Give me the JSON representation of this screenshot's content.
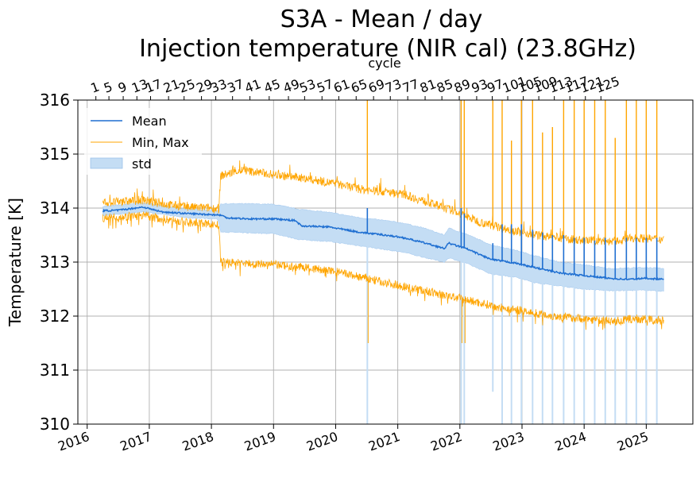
{
  "chart_data": {
    "type": "line",
    "title": "S3A - Mean / day",
    "subtitle": "Injection temperature (NIR cal) (23.8GHz)",
    "ylabel": "Temperature [K]",
    "top_xlabel": "cycle",
    "ylim": [
      310,
      316
    ],
    "yticks": [
      "310",
      "311",
      "312",
      "313",
      "314",
      "315",
      "316"
    ],
    "xlim": [
      2015.85,
      2025.75
    ],
    "xticks": [
      {
        "x": 2016,
        "label": "2016"
      },
      {
        "x": 2017,
        "label": "2017"
      },
      {
        "x": 2018,
        "label": "2018"
      },
      {
        "x": 2019,
        "label": "2019"
      },
      {
        "x": 2020,
        "label": "2020"
      },
      {
        "x": 2021,
        "label": "2021"
      },
      {
        "x": 2022,
        "label": "2022"
      },
      {
        "x": 2023,
        "label": "2023"
      },
      {
        "x": 2024,
        "label": "2024"
      },
      {
        "x": 2025,
        "label": "2025"
      }
    ],
    "cycle_ticks": [
      {
        "x": 2016.14,
        "label": "1"
      },
      {
        "x": 2016.35,
        "label": "5"
      },
      {
        "x": 2016.58,
        "label": "9"
      },
      {
        "x": 2016.8,
        "label": "13"
      },
      {
        "x": 2017.02,
        "label": "17"
      },
      {
        "x": 2017.31,
        "label": "21"
      },
      {
        "x": 2017.56,
        "label": "25"
      },
      {
        "x": 2017.84,
        "label": "29"
      },
      {
        "x": 2018.07,
        "label": "33"
      },
      {
        "x": 2018.34,
        "label": "37"
      },
      {
        "x": 2018.62,
        "label": "41"
      },
      {
        "x": 2018.93,
        "label": "45"
      },
      {
        "x": 2019.24,
        "label": "49"
      },
      {
        "x": 2019.5,
        "label": "53"
      },
      {
        "x": 2019.78,
        "label": "57"
      },
      {
        "x": 2020.05,
        "label": "61"
      },
      {
        "x": 2020.33,
        "label": "65"
      },
      {
        "x": 2020.61,
        "label": "69"
      },
      {
        "x": 2020.88,
        "label": "73"
      },
      {
        "x": 2021.16,
        "label": "77"
      },
      {
        "x": 2021.44,
        "label": "81"
      },
      {
        "x": 2021.71,
        "label": "85"
      },
      {
        "x": 2021.99,
        "label": "89"
      },
      {
        "x": 2022.27,
        "label": "93"
      },
      {
        "x": 2022.52,
        "label": "97"
      },
      {
        "x": 2022.77,
        "label": "101"
      },
      {
        "x": 2023.02,
        "label": "105"
      },
      {
        "x": 2023.27,
        "label": "109"
      },
      {
        "x": 2023.52,
        "label": "113"
      },
      {
        "x": 2023.77,
        "label": "117"
      },
      {
        "x": 2024.02,
        "label": "121"
      },
      {
        "x": 2024.27,
        "label": "125"
      }
    ],
    "legend": [
      "Mean",
      "Min, Max",
      "std"
    ],
    "legend_position": "upper-left",
    "grid": true,
    "series": [
      {
        "name": "Mean",
        "color": "#1f6fd1",
        "x": [
          2016.25,
          2016.5,
          2016.9,
          2017.2,
          2017.6,
          2018.0,
          2018.15,
          2018.25,
          2018.6,
          2019.0,
          2019.35,
          2019.45,
          2019.9,
          2020.4,
          2020.8,
          2021.1,
          2021.45,
          2021.75,
          2021.82,
          2022.1,
          2022.5,
          2022.9,
          2023.2,
          2023.6,
          2024.0,
          2024.4,
          2024.7,
          2025.0,
          2025.28
        ],
        "values": [
          313.95,
          313.96,
          314.02,
          313.93,
          313.9,
          313.88,
          313.87,
          313.82,
          313.8,
          313.8,
          313.77,
          313.67,
          313.65,
          313.55,
          313.5,
          313.45,
          313.35,
          313.25,
          313.35,
          313.25,
          313.05,
          312.98,
          312.9,
          312.8,
          312.75,
          312.7,
          312.68,
          312.7,
          312.68
        ]
      },
      {
        "name": "Max",
        "color": "#ffa500",
        "x": [
          2016.25,
          2016.6,
          2016.9,
          2017.2,
          2017.6,
          2018.0,
          2018.12,
          2018.15,
          2018.5,
          2019.0,
          2019.5,
          2020.0,
          2020.4,
          2020.8,
          2021.1,
          2021.5,
          2021.9,
          2022.3,
          2022.7,
          2023.0,
          2023.5,
          2024.0,
          2024.5,
          2024.8,
          2025.28
        ],
        "values": [
          314.1,
          314.12,
          314.15,
          314.08,
          314.02,
          314.0,
          313.98,
          314.6,
          314.7,
          314.62,
          314.55,
          314.45,
          314.35,
          314.3,
          314.25,
          314.1,
          313.95,
          313.75,
          313.62,
          313.55,
          313.45,
          313.4,
          313.38,
          313.45,
          313.42
        ]
      },
      {
        "name": "Min",
        "color": "#ffa500",
        "x": [
          2016.25,
          2016.6,
          2016.9,
          2017.2,
          2017.6,
          2018.0,
          2018.12,
          2018.15,
          2018.5,
          2019.0,
          2019.5,
          2020.0,
          2020.4,
          2020.8,
          2021.1,
          2021.5,
          2021.9,
          2022.3,
          2022.7,
          2023.0,
          2023.5,
          2024.0,
          2024.5,
          2024.8,
          2025.28
        ],
        "values": [
          313.82,
          313.84,
          313.86,
          313.8,
          313.74,
          313.7,
          313.68,
          313.0,
          312.98,
          312.95,
          312.9,
          312.82,
          312.72,
          312.62,
          312.55,
          312.45,
          312.35,
          312.25,
          312.15,
          312.1,
          312.0,
          311.95,
          311.9,
          311.95,
          311.92
        ]
      },
      {
        "name": "std",
        "color": "#c4ddf4",
        "x": [
          2016.25,
          2016.9,
          2017.6,
          2018.1,
          2018.15,
          2018.6,
          2019.0,
          2019.4,
          2019.9,
          2020.4,
          2020.8,
          2021.1,
          2021.45,
          2021.75,
          2021.82,
          2022.1,
          2022.5,
          2022.9,
          2023.2,
          2023.6,
          2024.0,
          2024.4,
          2025.0,
          2025.28
        ],
        "upper": [
          314.03,
          314.1,
          313.98,
          313.95,
          314.08,
          314.08,
          314.07,
          313.98,
          313.92,
          313.82,
          313.77,
          313.72,
          313.62,
          313.5,
          313.63,
          313.52,
          313.32,
          313.22,
          313.12,
          313.0,
          312.95,
          312.88,
          312.9,
          312.88
        ],
        "lower": [
          313.86,
          313.93,
          313.82,
          313.8,
          313.56,
          313.54,
          313.53,
          313.42,
          313.38,
          313.3,
          313.23,
          313.18,
          313.08,
          313.0,
          313.08,
          312.98,
          312.78,
          312.72,
          312.62,
          312.56,
          312.5,
          312.47,
          312.48,
          312.46
        ]
      }
    ],
    "spikes": [
      {
        "x": 2020.51,
        "max": 316,
        "min": 310,
        "mean": 314.0
      },
      {
        "x": 2022.02,
        "max": 316,
        "min": 310,
        "mean": 314.0
      },
      {
        "x": 2022.07,
        "max": 316,
        "min": 310,
        "mean": 313.9
      },
      {
        "x": 2022.53,
        "max": 316,
        "min": 310.6,
        "mean": 313.35
      },
      {
        "x": 2022.68,
        "max": 316,
        "min": 310,
        "mean": 313.7
      },
      {
        "x": 2022.83,
        "max": 315.25,
        "min": 310,
        "mean": 313.7
      },
      {
        "x": 2022.99,
        "max": 316,
        "min": 310,
        "mean": 313.7
      },
      {
        "x": 2023.17,
        "max": 316,
        "min": 310,
        "mean": 313.6
      },
      {
        "x": 2023.33,
        "max": 315.4,
        "min": 310,
        "mean": 313.55
      },
      {
        "x": 2023.49,
        "max": 315.5,
        "min": 310,
        "mean": 313.5
      },
      {
        "x": 2023.67,
        "max": 316,
        "min": 310,
        "mean": 313.5
      },
      {
        "x": 2023.84,
        "max": 316,
        "min": 310,
        "mean": 313.45
      },
      {
        "x": 2024.0,
        "max": 316,
        "min": 310,
        "mean": 313.45
      },
      {
        "x": 2024.17,
        "max": 316,
        "min": 310,
        "mean": 313.4
      },
      {
        "x": 2024.34,
        "max": 316,
        "min": 310,
        "mean": 313.45
      },
      {
        "x": 2024.5,
        "max": 315.3,
        "min": 310,
        "mean": 313.4
      },
      {
        "x": 2024.68,
        "max": 316,
        "min": 310,
        "mean": 313.45
      },
      {
        "x": 2024.84,
        "max": 316,
        "min": 310,
        "mean": 313.45
      },
      {
        "x": 2025.0,
        "max": 316,
        "min": 310,
        "mean": 313.45
      },
      {
        "x": 2025.17,
        "max": 316,
        "min": 310,
        "mean": 313.45
      }
    ]
  }
}
